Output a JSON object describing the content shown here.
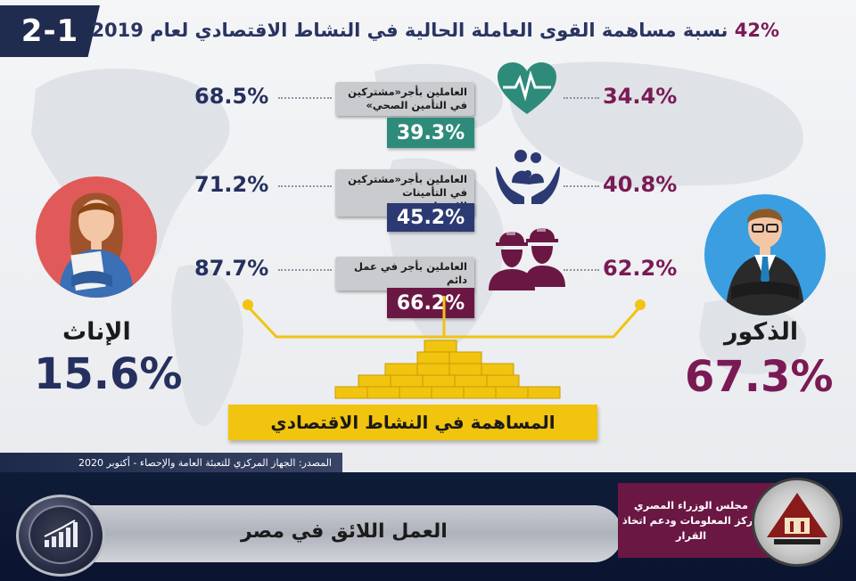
{
  "header": {
    "badge": "2-1",
    "title_pct": "42%",
    "title_text": "نسبة مساهمة القوى العاملة الحالية في النشاط الاقتصادي لعام 2019"
  },
  "categories": [
    {
      "label_line1": "العاملين بأجر«مشتركين",
      "label_line2": "في التأمين الصحي»",
      "value": "39.3%",
      "female": "68.5%",
      "male": "34.4%",
      "color": "#2e8b7a",
      "icon": "heartbeat-icon"
    },
    {
      "label_line1": "العاملين بأجر«مشتركين",
      "label_line2": "في التأمينات الاجتماعية»",
      "value": "45.2%",
      "female": "71.2%",
      "male": "40.8%",
      "color": "#2c3a73",
      "icon": "family-hands-icon"
    },
    {
      "label_line1": "العاملين بأجر في عمل دائم",
      "label_line2": "",
      "value": "66.2%",
      "female": "87.7%",
      "male": "62.2%",
      "color": "#6b1744",
      "icon": "workers-helmet-icon"
    }
  ],
  "female": {
    "label": "الإناث",
    "pct": "15.6%",
    "color": "#26305e",
    "icon": "woman-avatar-icon"
  },
  "male": {
    "label": "الذكور",
    "pct": "67.3%",
    "color": "#7a1a55",
    "icon": "man-avatar-icon"
  },
  "base_label": "المساهمة في النشاط الاقتصادي",
  "source": "المصدر: الجهاز المركزي للتعبئة العامة والإحصاء - أكتوبر 2020",
  "footer": {
    "title": "العمل اللائق في مصر",
    "council_line1": "مجلس الوزراء المصري",
    "council_line2": "مركز المعلومات ودعم اتخاذ القرار",
    "chart_icon": "growth-chart-icon",
    "logo_icon": "idsc-logo-icon"
  }
}
